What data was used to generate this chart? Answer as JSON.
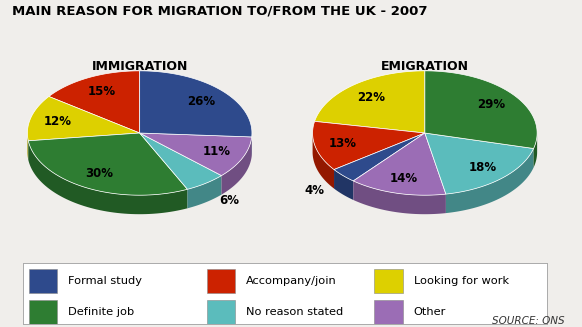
{
  "title": "MAIN REASON FOR MIGRATION TO/FROM THE UK - 2007",
  "immigration_label": "IMMIGRATION",
  "emigration_label": "EMIGRATION",
  "categories": [
    "Formal study",
    "Accompany/join",
    "Looking for work",
    "Definite job",
    "No reason stated",
    "Other"
  ],
  "colors": [
    "#2e4a8c",
    "#cc2200",
    "#ddd000",
    "#2e7d32",
    "#5bbcbc",
    "#9b6db5"
  ],
  "immigration_values": [
    26,
    15,
    12,
    30,
    6,
    11
  ],
  "emigration_values": [
    4,
    13,
    22,
    29,
    18,
    14
  ],
  "immigration_labels": [
    "26%",
    "15%",
    "12%",
    "30%",
    "6%",
    "11%"
  ],
  "emigration_labels": [
    "4%",
    "13%",
    "22%",
    "29%",
    "18%",
    "14%"
  ],
  "source_text": "SOURCE: ONS",
  "bg_color": "#f0eeeb",
  "legend_bg": "#ffffff",
  "title_fontsize": 9.5,
  "label_fontsize": 8.5,
  "subtitle_fontsize": 9
}
